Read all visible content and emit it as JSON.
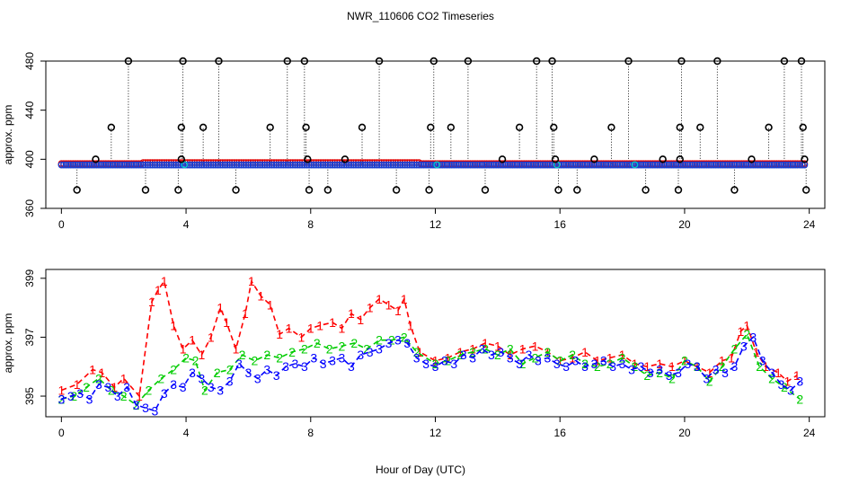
{
  "title": "NWR_110606  CO2 Timeseries",
  "xlabel": "Hour of Day (UTC)",
  "chart_data": [
    {
      "type": "scatter",
      "panel": "top",
      "ylabel": "approx. ppm",
      "xlim": [
        -0.5,
        24.5
      ],
      "ylim": [
        360,
        480
      ],
      "xticks": [
        0,
        4,
        8,
        12,
        16,
        20,
        24
      ],
      "yticks": [
        360,
        400,
        440,
        480
      ],
      "xtick_labels": [
        "0",
        "4",
        "8",
        "12",
        "16",
        "20",
        "24"
      ],
      "ytick_labels": [
        "360",
        "400",
        "440",
        "480"
      ],
      "baseline": 396,
      "outliers": [
        {
          "x": 0.5,
          "y": 375
        },
        {
          "x": 1.1,
          "y": 400
        },
        {
          "x": 1.6,
          "y": 426
        },
        {
          "x": 2.15,
          "y": 480
        },
        {
          "x": 2.7,
          "y": 375
        },
        {
          "x": 3.75,
          "y": 375
        },
        {
          "x": 3.85,
          "y": 426
        },
        {
          "x": 3.9,
          "y": 480
        },
        {
          "x": 3.85,
          "y": 400
        },
        {
          "x": 4.55,
          "y": 426
        },
        {
          "x": 5.05,
          "y": 480
        },
        {
          "x": 5.6,
          "y": 375
        },
        {
          "x": 6.7,
          "y": 426
        },
        {
          "x": 7.25,
          "y": 480
        },
        {
          "x": 7.8,
          "y": 480
        },
        {
          "x": 7.85,
          "y": 426
        },
        {
          "x": 7.9,
          "y": 400
        },
        {
          "x": 7.95,
          "y": 375
        },
        {
          "x": 8.55,
          "y": 375
        },
        {
          "x": 9.1,
          "y": 400
        },
        {
          "x": 9.65,
          "y": 426
        },
        {
          "x": 10.2,
          "y": 480
        },
        {
          "x": 10.75,
          "y": 375
        },
        {
          "x": 11.8,
          "y": 375
        },
        {
          "x": 11.85,
          "y": 426
        },
        {
          "x": 11.95,
          "y": 480
        },
        {
          "x": 12.5,
          "y": 426
        },
        {
          "x": 13.05,
          "y": 480
        },
        {
          "x": 13.6,
          "y": 375
        },
        {
          "x": 14.15,
          "y": 400
        },
        {
          "x": 14.7,
          "y": 426
        },
        {
          "x": 15.25,
          "y": 480
        },
        {
          "x": 15.75,
          "y": 480
        },
        {
          "x": 15.8,
          "y": 426
        },
        {
          "x": 15.85,
          "y": 400
        },
        {
          "x": 15.95,
          "y": 375
        },
        {
          "x": 16.55,
          "y": 375
        },
        {
          "x": 17.1,
          "y": 400
        },
        {
          "x": 17.65,
          "y": 426
        },
        {
          "x": 18.2,
          "y": 480
        },
        {
          "x": 18.75,
          "y": 375
        },
        {
          "x": 19.3,
          "y": 400
        },
        {
          "x": 19.8,
          "y": 375
        },
        {
          "x": 19.85,
          "y": 426
        },
        {
          "x": 19.9,
          "y": 480
        },
        {
          "x": 19.85,
          "y": 400
        },
        {
          "x": 20.5,
          "y": 426
        },
        {
          "x": 21.05,
          "y": 480
        },
        {
          "x": 21.6,
          "y": 375
        },
        {
          "x": 22.15,
          "y": 400
        },
        {
          "x": 22.7,
          "y": 426
        },
        {
          "x": 23.2,
          "y": 480
        },
        {
          "x": 23.75,
          "y": 480
        },
        {
          "x": 23.8,
          "y": 426
        },
        {
          "x": 23.85,
          "y": 400
        },
        {
          "x": 23.9,
          "y": 375
        }
      ]
    },
    {
      "type": "scatter",
      "panel": "bottom",
      "ylabel": "approx. ppm",
      "xlim": [
        -0.5,
        24.5
      ],
      "ylim": [
        394.3,
        399.3
      ],
      "xticks": [
        0,
        4,
        8,
        12,
        16,
        20,
        24
      ],
      "yticks": [
        395,
        397,
        399
      ],
      "xtick_labels": [
        "0",
        "4",
        "8",
        "12",
        "16",
        "20",
        "24"
      ],
      "ytick_labels": [
        "395",
        "397",
        "399"
      ],
      "series": [
        {
          "name": "1",
          "marker": "1",
          "color": "#ff0000",
          "x": [
            0,
            0.5,
            1,
            1.3,
            1.7,
            2.0,
            2.5,
            2.9,
            3.1,
            3.3,
            3.6,
            3.9,
            4.2,
            4.5,
            4.8,
            5.1,
            5.3,
            5.6,
            5.9,
            6.1,
            6.4,
            6.7,
            7.0,
            7.3,
            7.7,
            8.0,
            8.3,
            8.7,
            9.0,
            9.3,
            9.6,
            9.9,
            10.2,
            10.5,
            10.8,
            11.0,
            11.2,
            11.5,
            12.0,
            12.4,
            12.8,
            13.2,
            13.6,
            14.0,
            14.4,
            14.8,
            15.2,
            15.6,
            16.0,
            16.4,
            16.8,
            17.2,
            17.6,
            18.0,
            18.4,
            18.8,
            19.2,
            19.6,
            20.0,
            20.4,
            20.8,
            21.2,
            21.5,
            21.8,
            22.0,
            22.3,
            22.6,
            23.0,
            23.3,
            23.6
          ],
          "y": [
            395.2,
            395.4,
            395.9,
            395.8,
            395.3,
            395.6,
            395.0,
            398.2,
            398.6,
            398.9,
            397.4,
            396.6,
            396.9,
            396.4,
            397.0,
            398.0,
            397.5,
            396.6,
            397.8,
            398.9,
            398.4,
            398.1,
            397.1,
            397.3,
            397.0,
            397.3,
            397.4,
            397.5,
            397.3,
            397.8,
            397.6,
            398.0,
            398.3,
            398.1,
            397.9,
            398.3,
            397.4,
            396.5,
            396.2,
            396.3,
            396.5,
            396.6,
            396.8,
            396.7,
            396.4,
            396.6,
            396.7,
            396.5,
            396.2,
            396.3,
            396.5,
            396.2,
            396.3,
            396.4,
            396.1,
            396.0,
            396.1,
            396.0,
            396.2,
            396.0,
            395.8,
            396.2,
            396.3,
            397.2,
            397.4,
            396.5,
            396.0,
            395.8,
            395.5,
            395.7
          ]
        },
        {
          "name": "2",
          "marker": "2",
          "color": "#00cc00",
          "x": [
            0,
            0.4,
            0.8,
            1.2,
            1.6,
            2.0,
            2.4,
            2.8,
            3.2,
            3.6,
            4.0,
            4.3,
            4.6,
            5.0,
            5.4,
            5.8,
            6.2,
            6.6,
            7.0,
            7.4,
            7.8,
            8.2,
            8.6,
            9.0,
            9.4,
            9.8,
            10.2,
            10.6,
            11.0,
            11.4,
            12.0,
            12.4,
            12.8,
            13.2,
            13.6,
            14.0,
            14.4,
            14.8,
            15.2,
            15.6,
            16.0,
            16.4,
            16.8,
            17.2,
            17.6,
            18.0,
            18.4,
            18.8,
            19.2,
            19.6,
            20.0,
            20.4,
            20.8,
            21.2,
            21.6,
            22.0,
            22.4,
            22.8,
            23.2,
            23.7
          ],
          "y": [
            394.9,
            395.0,
            395.3,
            395.6,
            395.2,
            395.0,
            394.7,
            395.2,
            395.6,
            395.9,
            396.3,
            396.2,
            395.2,
            395.8,
            395.9,
            396.4,
            396.2,
            396.4,
            396.3,
            396.5,
            396.6,
            396.8,
            396.6,
            396.7,
            396.8,
            396.6,
            396.9,
            396.9,
            397.0,
            396.5,
            396.1,
            396.2,
            396.4,
            396.5,
            396.6,
            396.4,
            396.6,
            396.1,
            396.3,
            396.5,
            396.2,
            396.4,
            396.1,
            396.0,
            396.1,
            396.3,
            396.0,
            395.7,
            395.8,
            395.6,
            396.2,
            396.0,
            395.5,
            396.0,
            396.6,
            397.1,
            396.0,
            395.6,
            395.3,
            394.9
          ]
        },
        {
          "name": "3",
          "marker": "3",
          "color": "#0000ff",
          "x": [
            0,
            0.3,
            0.6,
            0.9,
            1.2,
            1.5,
            1.8,
            2.1,
            2.4,
            2.7,
            3.0,
            3.3,
            3.6,
            3.9,
            4.2,
            4.5,
            4.8,
            5.1,
            5.4,
            5.7,
            6.0,
            6.3,
            6.6,
            6.9,
            7.2,
            7.5,
            7.8,
            8.1,
            8.4,
            8.7,
            9.0,
            9.3,
            9.6,
            9.9,
            10.2,
            10.5,
            10.8,
            11.1,
            11.4,
            11.7,
            12.0,
            12.3,
            12.6,
            12.9,
            13.2,
            13.5,
            13.8,
            14.1,
            14.4,
            14.7,
            15.0,
            15.3,
            15.6,
            15.9,
            16.2,
            16.5,
            16.8,
            17.1,
            17.4,
            17.7,
            18.0,
            18.3,
            18.6,
            18.9,
            19.2,
            19.5,
            19.8,
            20.1,
            20.4,
            20.7,
            21.0,
            21.3,
            21.6,
            21.9,
            22.2,
            22.5,
            22.8,
            23.1,
            23.4,
            23.7
          ],
          "y": [
            394.9,
            395.0,
            395.1,
            394.9,
            395.4,
            395.3,
            395.0,
            395.3,
            394.7,
            394.6,
            394.5,
            395.1,
            395.4,
            395.3,
            395.8,
            395.6,
            395.3,
            395.2,
            395.5,
            396.1,
            395.8,
            395.6,
            395.9,
            395.7,
            396.0,
            396.1,
            396.0,
            396.3,
            396.1,
            396.2,
            396.3,
            396.0,
            396.4,
            396.5,
            396.6,
            396.8,
            396.9,
            396.8,
            396.3,
            396.1,
            396.0,
            396.2,
            396.1,
            396.4,
            396.3,
            396.6,
            396.4,
            396.5,
            396.3,
            396.1,
            396.4,
            396.2,
            396.3,
            396.1,
            396.0,
            396.2,
            396.0,
            396.1,
            396.2,
            396.0,
            396.1,
            395.9,
            396.0,
            395.8,
            395.9,
            395.7,
            395.8,
            396.1,
            396.0,
            395.6,
            395.9,
            395.8,
            396.0,
            396.7,
            397.0,
            396.2,
            395.8,
            395.4,
            395.2,
            395.5
          ]
        }
      ]
    }
  ]
}
